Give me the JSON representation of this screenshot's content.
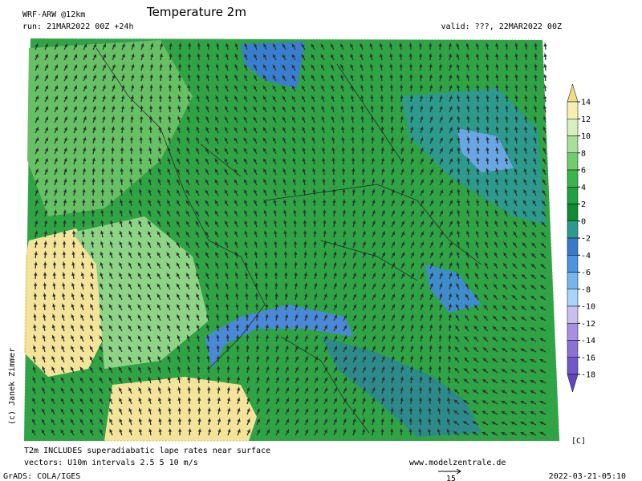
{
  "header": {
    "model": "WRF-ARW @12km",
    "run": "run: 21MAR2022 00Z +24h",
    "title": "Temperature 2m",
    "valid": "valid: ???, 22MAR2022 00Z"
  },
  "credit": "(c) Janek Zimmer",
  "colorbar": {
    "unit": "[C]",
    "ticks": [
      14,
      12,
      10,
      8,
      6,
      4,
      2,
      0,
      -2,
      -4,
      -6,
      -8,
      -10,
      -12,
      -14,
      -16,
      -18
    ],
    "colors": [
      "#f0dc82",
      "#f6f0b0",
      "#d8f0c0",
      "#a8e098",
      "#70cc6c",
      "#3cb44a",
      "#20a040",
      "#108a34",
      "#2c9a8c",
      "#3a78c8",
      "#4a94e0",
      "#78b4ee",
      "#a8d4f8",
      "#c8c0ec",
      "#a890e0",
      "#8c70d4",
      "#7058c8",
      "#6048bc"
    ]
  },
  "footer": {
    "note": "T2m INCLUDES superadiabatic lape rates near surface",
    "vectors": "vectors: U10m intervals 2.5 5 10 m/s",
    "site": "www.modelzentrale.de",
    "grads": "GrADS: COLA/IGES",
    "ref_vector": "15",
    "timestamp": "2022-03-21-05:10"
  }
}
